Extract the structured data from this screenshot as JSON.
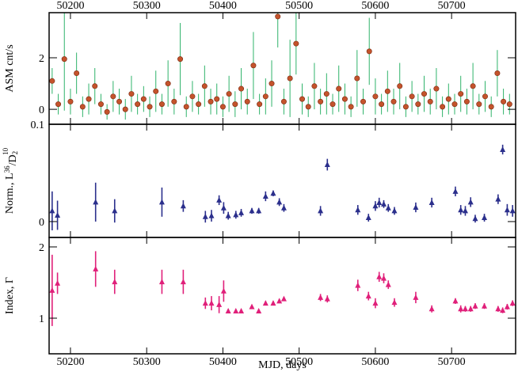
{
  "chart_data": [
    {
      "type": "scatter",
      "marker": "circle",
      "ylabel": "ASM cnt/s",
      "color": "#c4532c",
      "error_color": "#2fb36a",
      "xlim": [
        50172,
        50784
      ],
      "xticks": [
        50200,
        50300,
        50400,
        50500,
        50600,
        50700
      ],
      "xtick_side": "top",
      "ylim": [
        -0.58,
        3.75
      ],
      "yticks": [
        0,
        2
      ],
      "x": [
        50176,
        50184,
        50192,
        50200,
        50208,
        50216,
        50224,
        50232,
        50240,
        50248,
        50256,
        50264,
        50272,
        50280,
        50288,
        50296,
        50304,
        50312,
        50320,
        50328,
        50336,
        50344,
        50352,
        50360,
        50368,
        50376,
        50384,
        50392,
        50400,
        50408,
        50416,
        50424,
        50432,
        50440,
        50448,
        50456,
        50464,
        50472,
        50480,
        50488,
        50496,
        50504,
        50512,
        50520,
        50528,
        50536,
        50544,
        50552,
        50560,
        50568,
        50576,
        50584,
        50592,
        50600,
        50608,
        50616,
        50624,
        50632,
        50640,
        50648,
        50656,
        50664,
        50672,
        50680,
        50688,
        50696,
        50704,
        50712,
        50720,
        50728,
        50736,
        50744,
        50752,
        50760,
        50768,
        50776
      ],
      "values": [
        1.1,
        0.2,
        1.95,
        0.3,
        1.4,
        0.1,
        0.4,
        0.9,
        0.2,
        -0.1,
        0.5,
        0.3,
        0.0,
        0.6,
        0.2,
        0.4,
        0.1,
        0.7,
        0.2,
        1.0,
        0.3,
        1.95,
        0.1,
        0.5,
        0.2,
        0.9,
        0.3,
        0.4,
        0.1,
        0.6,
        0.2,
        0.8,
        0.3,
        1.7,
        0.2,
        0.5,
        1.0,
        3.6,
        0.3,
        1.2,
        2.55,
        0.4,
        0.1,
        0.9,
        0.3,
        0.6,
        0.2,
        0.8,
        0.4,
        0.1,
        1.2,
        0.3,
        2.25,
        0.5,
        0.2,
        0.7,
        0.3,
        0.9,
        0.1,
        0.5,
        0.2,
        0.6,
        0.3,
        0.8,
        0.1,
        0.4,
        0.2,
        0.6,
        0.3,
        0.9,
        0.2,
        0.5,
        0.1,
        1.4,
        0.3,
        0.2
      ],
      "errors": [
        0.5,
        0.4,
        2.0,
        0.5,
        0.8,
        0.4,
        0.6,
        0.7,
        0.4,
        0.3,
        0.6,
        0.5,
        0.4,
        0.7,
        0.4,
        0.5,
        0.4,
        0.8,
        0.4,
        0.9,
        0.5,
        1.4,
        0.4,
        0.6,
        0.4,
        0.8,
        0.5,
        0.6,
        0.4,
        0.7,
        0.5,
        0.8,
        0.5,
        1.3,
        0.4,
        0.7,
        0.9,
        1.2,
        0.5,
        1.5,
        1.2,
        0.6,
        0.4,
        0.9,
        0.5,
        0.8,
        0.4,
        0.9,
        0.6,
        0.4,
        1.1,
        0.5,
        1.3,
        0.7,
        0.4,
        0.8,
        0.5,
        0.9,
        0.4,
        0.6,
        0.4,
        0.7,
        0.5,
        0.8,
        0.4,
        0.6,
        0.4,
        0.7,
        0.5,
        0.9,
        0.4,
        0.6,
        0.4,
        0.9,
        0.5,
        0.4
      ]
    },
    {
      "type": "scatter",
      "marker": "triangle",
      "ylabel": [
        "Norm., L",
        "36",
        "/D",
        "2",
        "10"
      ],
      "color": "#2b2f8c",
      "error_color": "#2b2f8c",
      "xlim": [
        50172,
        50784
      ],
      "xticks": [
        50200,
        50300,
        50400,
        50500,
        50600,
        50700
      ],
      "ylim": [
        -0.0163,
        0.1
      ],
      "yticks": [
        0,
        0.1
      ],
      "x": [
        50176,
        50183,
        50233,
        50258,
        50320,
        50348,
        50377,
        50385,
        50395,
        50401,
        50407,
        50417,
        50424,
        50438,
        50447,
        50456,
        50466,
        50474,
        50480,
        50528,
        50537,
        50577,
        50591,
        50600,
        50605,
        50611,
        50617,
        50625,
        50653,
        50674,
        50705,
        50712,
        50718,
        50725,
        50731,
        50743,
        50761,
        50767,
        50773,
        50780
      ],
      "values": [
        0.011,
        0.0065,
        0.02,
        0.011,
        0.02,
        0.016,
        0.005,
        0.006,
        0.022,
        0.014,
        0.006,
        0.007,
        0.009,
        0.011,
        0.011,
        0.026,
        0.029,
        0.02,
        0.014,
        0.011,
        0.0585,
        0.012,
        0.004,
        0.016,
        0.0195,
        0.018,
        0.014,
        0.011,
        0.0146,
        0.0195,
        0.031,
        0.012,
        0.011,
        0.02,
        0.003,
        0.004,
        0.023,
        0.074,
        0.012,
        0.011
      ],
      "errors": [
        0.02,
        0.015,
        0.02,
        0.012,
        0.015,
        0.006,
        0.006,
        0.006,
        0.005,
        0.006,
        0.004,
        0.004,
        0.004,
        0.003,
        0.003,
        0.005,
        0.003,
        0.004,
        0.004,
        0.005,
        0.006,
        0.005,
        0.004,
        0.005,
        0.005,
        0.004,
        0.004,
        0.004,
        0.005,
        0.005,
        0.005,
        0.005,
        0.005,
        0.005,
        0.004,
        0.004,
        0.005,
        0.005,
        0.006,
        0.006
      ]
    },
    {
      "type": "scatter",
      "marker": "triangle",
      "ylabel": "Index, Γ",
      "xlabel": "MJD, days",
      "color": "#e0207a",
      "error_color": "#e0207a",
      "xlim": [
        50172,
        50784
      ],
      "xticks": [
        50200,
        50300,
        50400,
        50500,
        50600,
        50700
      ],
      "xtick_side": "bottom",
      "ylim": [
        0.5,
        2.133
      ],
      "yticks": [
        1,
        2
      ],
      "x": [
        50176,
        50183,
        50233,
        50258,
        50320,
        50348,
        50377,
        50385,
        50395,
        50401,
        50407,
        50417,
        50424,
        50438,
        50447,
        50456,
        50466,
        50474,
        50480,
        50528,
        50537,
        50577,
        50591,
        50600,
        50605,
        50611,
        50617,
        50625,
        50653,
        50674,
        50705,
        50712,
        50718,
        50725,
        50731,
        50743,
        50761,
        50767,
        50773,
        50780
      ],
      "values": [
        1.39,
        1.49,
        1.69,
        1.51,
        1.51,
        1.51,
        1.21,
        1.21,
        1.19,
        1.38,
        1.1,
        1.1,
        1.1,
        1.16,
        1.1,
        1.21,
        1.21,
        1.24,
        1.27,
        1.29,
        1.27,
        1.46,
        1.31,
        1.21,
        1.58,
        1.56,
        1.47,
        1.22,
        1.29,
        1.13,
        1.24,
        1.13,
        1.13,
        1.13,
        1.17,
        1.17,
        1.13,
        1.11,
        1.16,
        1.21
      ],
      "errors": [
        0.5,
        0.15,
        0.25,
        0.17,
        0.17,
        0.17,
        0.08,
        0.1,
        0.12,
        0.15,
        0.02,
        0.02,
        0.02,
        0.02,
        0.02,
        0.03,
        0.03,
        0.03,
        0.02,
        0.05,
        0.05,
        0.08,
        0.06,
        0.07,
        0.07,
        0.07,
        0.06,
        0.06,
        0.08,
        0.05,
        0.04,
        0.05,
        0.04,
        0.04,
        0.04,
        0.04,
        0.04,
        0.04,
        0.04,
        0.04
      ]
    }
  ]
}
